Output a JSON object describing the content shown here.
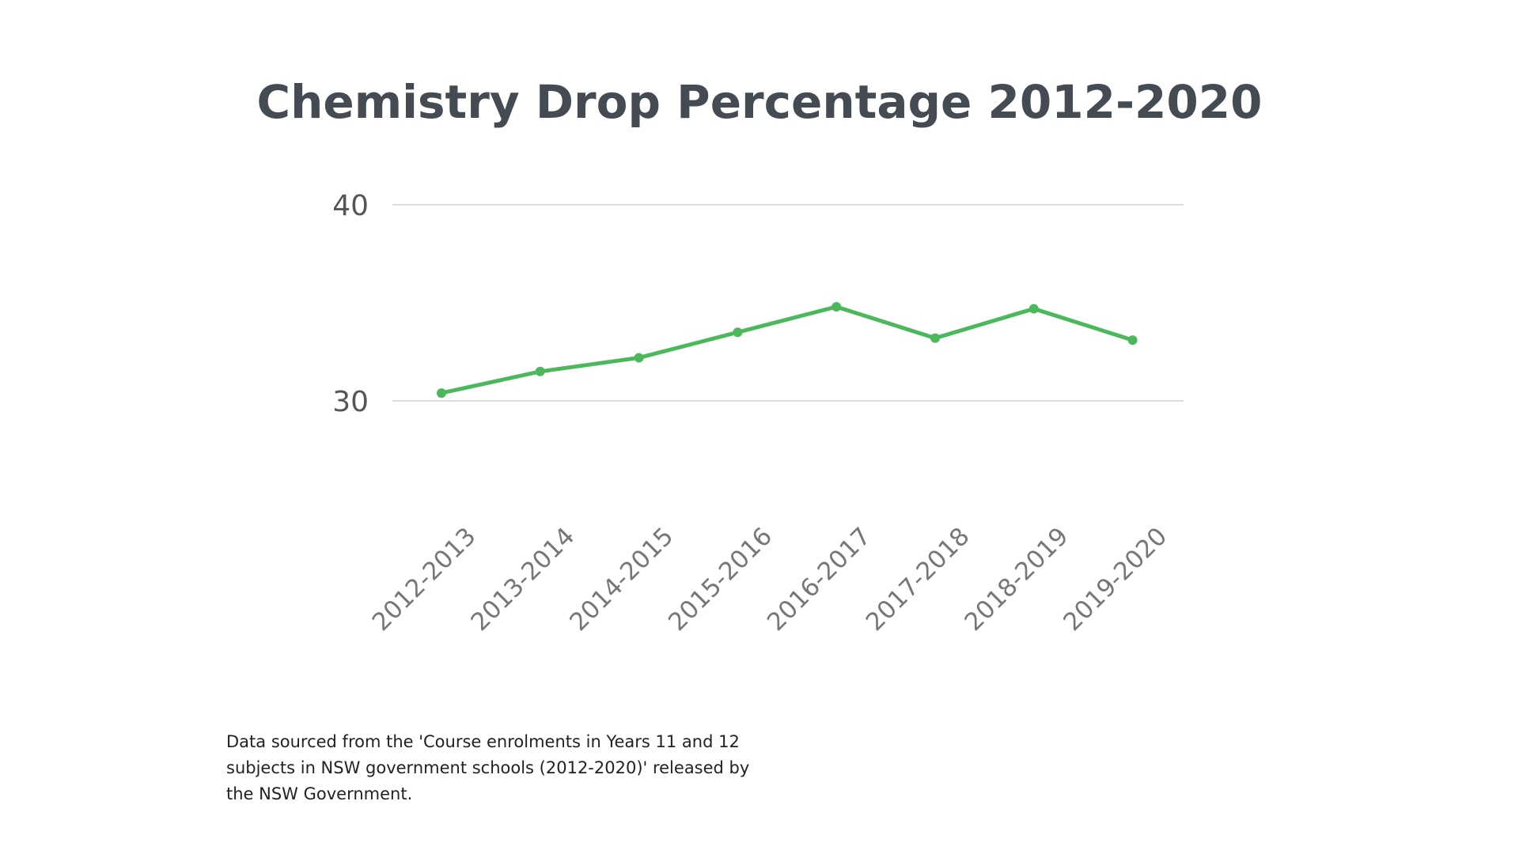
{
  "chart_data": {
    "type": "line",
    "title": "Chemistry Drop Percentage 2012-2020",
    "xlabel": "",
    "ylabel": "",
    "categories": [
      "2012-2013",
      "2013-2014",
      "2014-2015",
      "2015-2016",
      "2016-2017",
      "2017-2018",
      "2018-2019",
      "2019-2020"
    ],
    "values": [
      30.4,
      31.5,
      32.2,
      33.5,
      34.8,
      33.2,
      34.7,
      33.1
    ],
    "yticks": [
      "30",
      "40"
    ],
    "ylim": [
      30,
      40
    ],
    "grid": true,
    "legend": "none",
    "color": "#4cb85c"
  },
  "footnote": "Data sourced from the 'Course enrolments in Years 11 and 12 subjects in NSW government schools (2012-2020)' released by the NSW Government."
}
